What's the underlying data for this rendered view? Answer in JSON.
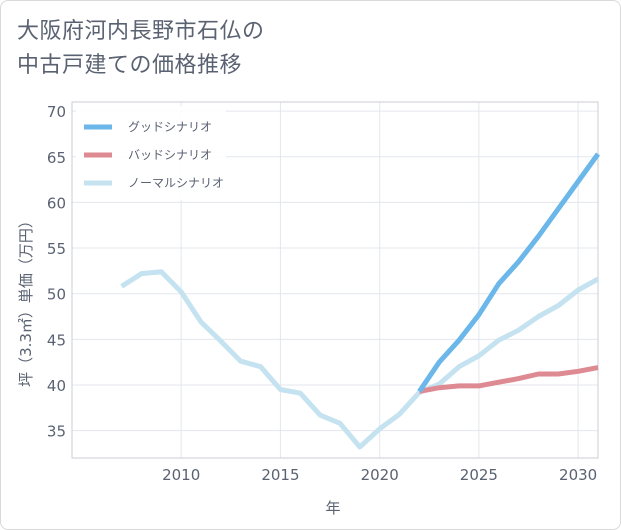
{
  "chart_data": {
    "type": "line",
    "title": "大阪府河内長野市石仏の\n中古戸建ての価格推移",
    "xlabel": "年",
    "ylabel": "坪（3.3㎡）単価（万円）",
    "xlim": [
      2004.5,
      2031
    ],
    "ylim": [
      32,
      71
    ],
    "xticks": [
      2010,
      2015,
      2020,
      2025,
      2030
    ],
    "yticks": [
      35,
      40,
      45,
      50,
      55,
      60,
      65,
      70
    ],
    "grid": true,
    "legend_position": "top-left",
    "series": [
      {
        "name": "グッドシナリオ",
        "color": "#6bb7ea",
        "x": [
          2022,
          2023,
          2024,
          2025,
          2026,
          2027,
          2028,
          2029,
          2030,
          2031
        ],
        "y": [
          39.3,
          42.5,
          44.9,
          47.7,
          51.1,
          53.5,
          56.3,
          59.3,
          62.3,
          65.3
        ]
      },
      {
        "name": "バッドシナリオ",
        "color": "#de8a93",
        "x": [
          2022,
          2023,
          2024,
          2025,
          2026,
          2027,
          2028,
          2029,
          2030,
          2031
        ],
        "y": [
          39.3,
          39.7,
          39.9,
          39.9,
          40.3,
          40.7,
          41.2,
          41.2,
          41.5,
          41.9
        ]
      },
      {
        "name": "ノーマルシナリオ",
        "color": "#c4e2ef",
        "x": [
          2007,
          2008,
          2009,
          2010,
          2011,
          2012,
          2013,
          2014,
          2015,
          2016,
          2017,
          2018,
          2019,
          2020,
          2021,
          2022,
          2023,
          2024,
          2025,
          2026,
          2027,
          2028,
          2029,
          2030,
          2031
        ],
        "y": [
          50.8,
          52.2,
          52.4,
          50.2,
          46.9,
          44.8,
          42.6,
          42.0,
          39.5,
          39.1,
          36.7,
          35.8,
          33.2,
          35.2,
          36.8,
          39.2,
          40.1,
          42.0,
          43.2,
          44.9,
          46.0,
          47.5,
          48.7,
          50.4,
          51.6
        ]
      }
    ]
  }
}
